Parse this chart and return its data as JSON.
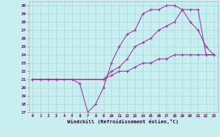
{
  "xlabel": "Windchill (Refroidissement éolien,°C)",
  "bg_color": "#c8eef0",
  "grid_color": "#aadddd",
  "line_color": "#993399",
  "xlim_min": -0.5,
  "xlim_max": 23.5,
  "ylim_min": 17,
  "ylim_max": 30.5,
  "xticks": [
    0,
    1,
    2,
    3,
    4,
    5,
    6,
    7,
    8,
    9,
    10,
    11,
    12,
    13,
    14,
    15,
    16,
    17,
    18,
    19,
    20,
    21,
    22,
    23
  ],
  "yticks": [
    17,
    18,
    19,
    20,
    21,
    22,
    23,
    24,
    25,
    26,
    27,
    28,
    29,
    30
  ],
  "line1_x": [
    0,
    1,
    2,
    3,
    4,
    5,
    6,
    7,
    8,
    9,
    10,
    11,
    12,
    13,
    14,
    15,
    16,
    17,
    18,
    19,
    20,
    21,
    22,
    23
  ],
  "line1_y": [
    21,
    21,
    21,
    21,
    21,
    21,
    20.5,
    17,
    18,
    20,
    23,
    25,
    26.5,
    27,
    29,
    29.5,
    29.5,
    30,
    30,
    29.5,
    28,
    27,
    25,
    24
  ],
  "line2_x": [
    0,
    3,
    9,
    10,
    11,
    12,
    13,
    14,
    15,
    16,
    17,
    18,
    19,
    20,
    21,
    22,
    23
  ],
  "line2_y": [
    21,
    21,
    21,
    22,
    22.5,
    23.5,
    25,
    25.5,
    26,
    27,
    27.5,
    28,
    29.5,
    29.5,
    29.5,
    24,
    24
  ],
  "line3_x": [
    0,
    1,
    2,
    3,
    9,
    10,
    11,
    12,
    13,
    14,
    15,
    16,
    17,
    18,
    19,
    20,
    21,
    22,
    23
  ],
  "line3_y": [
    21,
    21,
    21,
    21,
    21,
    21.5,
    22,
    22,
    22.5,
    23,
    23,
    23.5,
    23.5,
    24,
    24,
    24,
    24,
    24,
    24
  ]
}
